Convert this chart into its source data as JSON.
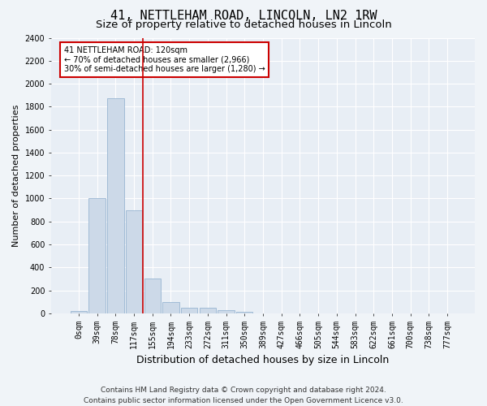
{
  "title": "41, NETTLEHAM ROAD, LINCOLN, LN2 1RW",
  "subtitle": "Size of property relative to detached houses in Lincoln",
  "xlabel": "Distribution of detached houses by size in Lincoln",
  "ylabel": "Number of detached properties",
  "bar_color": "#ccd9e8",
  "bar_edge_color": "#8aabcc",
  "categories": [
    "0sqm",
    "39sqm",
    "78sqm",
    "117sqm",
    "155sqm",
    "194sqm",
    "233sqm",
    "272sqm",
    "311sqm",
    "350sqm",
    "389sqm",
    "427sqm",
    "466sqm",
    "505sqm",
    "544sqm",
    "583sqm",
    "622sqm",
    "661sqm",
    "700sqm",
    "738sqm",
    "777sqm"
  ],
  "values": [
    20,
    1005,
    1870,
    900,
    305,
    100,
    48,
    48,
    28,
    15,
    0,
    0,
    0,
    0,
    0,
    0,
    0,
    0,
    0,
    0,
    0
  ],
  "vline_x_index": 3,
  "vline_color": "#cc0000",
  "annotation_text": "41 NETTLEHAM ROAD: 120sqm\n← 70% of detached houses are smaller (2,966)\n30% of semi-detached houses are larger (1,280) →",
  "annotation_box_facecolor": "#ffffff",
  "annotation_box_edgecolor": "#cc0000",
  "ylim": [
    0,
    2400
  ],
  "yticks": [
    0,
    200,
    400,
    600,
    800,
    1000,
    1200,
    1400,
    1600,
    1800,
    2000,
    2200,
    2400
  ],
  "footnote": "Contains HM Land Registry data © Crown copyright and database right 2024.\nContains public sector information licensed under the Open Government Licence v3.0.",
  "bg_color": "#f0f4f8",
  "plot_bg_color": "#e8eef5",
  "grid_color": "#ffffff",
  "title_fontsize": 11,
  "subtitle_fontsize": 9.5,
  "xlabel_fontsize": 9,
  "ylabel_fontsize": 8,
  "tick_fontsize": 7,
  "annot_fontsize": 7,
  "footnote_fontsize": 6.5
}
